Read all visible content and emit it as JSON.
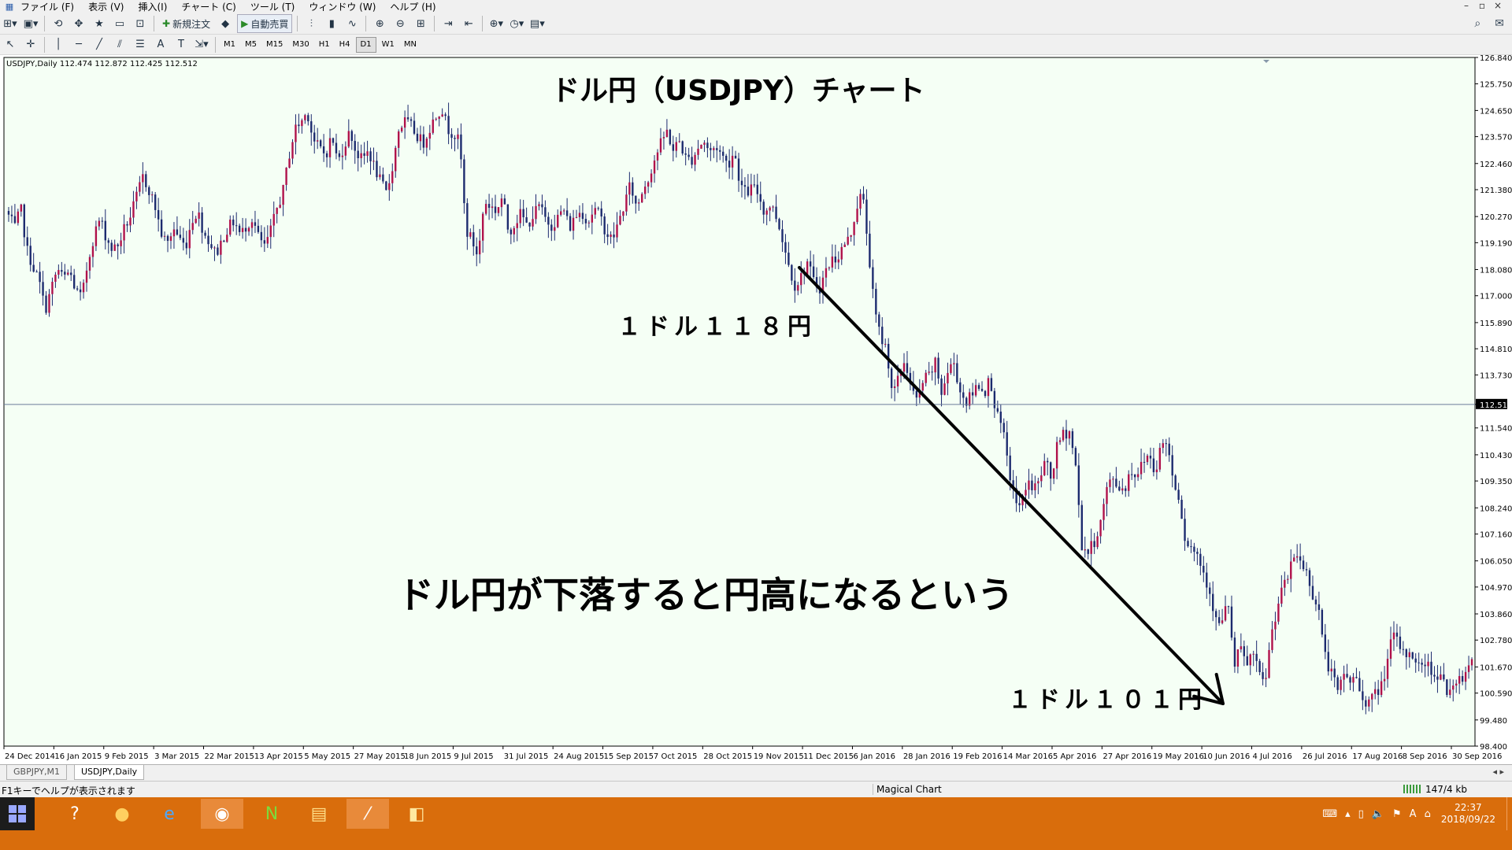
{
  "menu": {
    "items": [
      "ファイル (F)",
      "表示 (V)",
      "挿入(I)",
      "チャート (C)",
      "ツール (T)",
      "ウィンドウ (W)",
      "ヘルプ (H)"
    ],
    "window_controls": [
      "–",
      "▫",
      "×"
    ]
  },
  "toolbar": {
    "new_order": "新規注文",
    "auto_trading": "自動売買",
    "timeframes": [
      "M1",
      "M5",
      "M15",
      "M30",
      "H1",
      "H4",
      "D1",
      "W1",
      "MN"
    ],
    "active_timeframe": "D1"
  },
  "chart": {
    "symbol_info": "USDJPY,Daily  112.474 112.872 112.425 112.512",
    "title": "ドル円（USDJPY）チャート",
    "annotation_start": "１ドル１１８円",
    "annotation_main": "ドル円が下落すると円高になるという",
    "annotation_end": "１ドル１０１円",
    "current_price_label": "112.512",
    "colors": {
      "background": "#f5fff5",
      "bull": "#b0104a",
      "bear": "#1c2a6e",
      "price_line": "#6a7a9a",
      "arrow": "#000000"
    }
  },
  "chart_data": {
    "type": "candlestick",
    "symbol": "USDJPY",
    "timeframe": "Daily",
    "ylim": [
      98.4,
      126.84
    ],
    "yticks": [
      126.84,
      125.75,
      124.65,
      123.57,
      122.46,
      121.38,
      120.27,
      119.19,
      118.08,
      117.0,
      115.89,
      114.81,
      113.73,
      112.512,
      111.54,
      110.43,
      109.35,
      108.24,
      107.16,
      106.05,
      104.97,
      103.86,
      102.78,
      101.67,
      100.59,
      99.48,
      98.4
    ],
    "ytick_labels": [
      "126.840",
      "125.750",
      "124.650",
      "123.570",
      "122.460",
      "121.380",
      "120.270",
      "119.190",
      "118.080",
      "117.000",
      "115.890",
      "114.810",
      "113.730",
      "112.512",
      "111.540",
      "110.430",
      "109.350",
      "108.240",
      "107.160",
      "106.050",
      "104.970",
      "103.860",
      "102.780",
      "101.670",
      "100.590",
      "99.480",
      "98.400"
    ],
    "xtick_labels": [
      "24 Dec 2014",
      "16 Jan 2015",
      "9 Feb 2015",
      "3 Mar 2015",
      "22 Mar 2015",
      "13 Apr 2015",
      "5 May 2015",
      "27 May 2015",
      "18 Jun 2015",
      "9 Jul 2015",
      "31 Jul 2015",
      "24 Aug 2015",
      "15 Sep 2015",
      "7 Oct 2015",
      "28 Oct 2015",
      "19 Nov 2015",
      "11 Dec 2015",
      "6 Jan 2016",
      "28 Jan 2016",
      "19 Feb 2016",
      "14 Mar 2016",
      "5 Apr 2016",
      "27 Apr 2016",
      "19 May 2016",
      "10 Jun 2016",
      "4 Jul 2016",
      "26 Jul 2016",
      "17 Aug 2016",
      "8 Sep 2016",
      "30 Sep 2016"
    ],
    "current_price": 112.512,
    "trend_arrow": {
      "from_price": 118.0,
      "to_price": 101.0
    },
    "close_path": [
      120.3,
      119.8,
      120.6,
      118.9,
      118.2,
      117.6,
      116.4,
      117.3,
      118.1,
      117.7,
      118.0,
      117.2,
      116.9,
      118.4,
      119.5,
      120.2,
      119.4,
      118.9,
      119.1,
      119.8,
      120.3,
      121.1,
      121.9,
      121.4,
      120.7,
      119.6,
      119.1,
      119.8,
      119.4,
      119.0,
      120.1,
      120.5,
      119.6,
      119.2,
      118.7,
      119.3,
      119.8,
      120.1,
      119.5,
      119.9,
      120.2,
      119.4,
      119.0,
      119.7,
      120.6,
      121.3,
      122.8,
      123.9,
      124.2,
      124.6,
      123.4,
      123.1,
      122.8,
      123.6,
      122.5,
      123.2,
      123.8,
      122.9,
      122.6,
      123.0,
      122.3,
      121.7,
      121.2,
      122.4,
      123.9,
      124.2,
      124.0,
      123.6,
      123.3,
      123.9,
      124.4,
      124.8,
      123.9,
      123.7,
      123.3,
      119.7,
      119.3,
      118.6,
      120.9,
      120.7,
      120.5,
      121.1,
      119.6,
      120.0,
      120.4,
      119.9,
      120.3,
      120.7,
      120.2,
      119.9,
      120.2,
      120.6,
      119.8,
      120.3,
      120.5,
      120.0,
      120.6,
      120.3,
      119.6,
      119.3,
      120.0,
      120.8,
      121.6,
      120.6,
      121.4,
      121.9,
      122.7,
      123.3,
      123.8,
      123.0,
      123.4,
      122.7,
      122.6,
      123.1,
      123.4,
      122.9,
      123.2,
      122.8,
      122.4,
      123.0,
      121.6,
      121.2,
      121.5,
      121.2,
      120.4,
      120.8,
      120.2,
      119.3,
      118.2,
      117.4,
      117.8,
      118.4,
      117.6,
      117.3,
      118.0,
      118.5,
      118.6,
      119.1,
      119.4,
      120.6,
      121.3,
      119.0,
      116.4,
      115.3,
      114.8,
      112.9,
      113.6,
      114.4,
      113.2,
      112.6,
      113.5,
      113.7,
      114.2,
      113.0,
      113.8,
      114.3,
      113.1,
      112.6,
      112.9,
      113.4,
      113.0,
      113.6,
      112.1,
      111.5,
      109.9,
      108.6,
      108.2,
      109.4,
      109.0,
      109.3,
      110.2,
      109.4,
      110.8,
      111.3,
      111.4,
      110.0,
      106.7,
      106.4,
      106.8,
      107.5,
      108.9,
      109.5,
      109.1,
      109.0,
      109.8,
      109.6,
      110.1,
      110.5,
      109.7,
      110.8,
      111.0,
      109.4,
      108.7,
      106.9,
      106.6,
      106.3,
      105.6,
      104.8,
      103.6,
      103.4,
      104.5,
      101.6,
      102.5,
      101.7,
      102.3,
      101.4,
      100.9,
      102.8,
      104.1,
      104.9,
      105.5,
      106.4,
      106.0,
      105.5,
      104.6,
      103.9,
      102.0,
      101.4,
      100.6,
      101.4,
      101.1,
      101.2,
      100.4,
      100.2,
      100.5,
      100.8,
      101.7,
      103.0,
      102.6,
      102.1,
      102.4,
      101.6,
      101.9,
      101.7,
      101.2,
      101.6,
      100.5,
      100.7,
      101.2,
      101.4,
      102.2
    ]
  },
  "tabs": [
    "GBPJPY,M1",
    "USDJPY,Daily"
  ],
  "active_tab": "USDJPY,Daily",
  "status": {
    "help": "F1キーでヘルプが表示されます",
    "profile": "Magical Chart",
    "connection": "147/4 kb"
  },
  "taskbar": {
    "apps": [
      {
        "name": "help-app",
        "glyph": "?"
      },
      {
        "name": "browser-orb",
        "glyph": "●"
      },
      {
        "name": "internet-explorer",
        "glyph": "e"
      },
      {
        "name": "chrome",
        "glyph": "◉"
      },
      {
        "name": "nicovideo-app",
        "glyph": "N"
      },
      {
        "name": "file-explorer",
        "glyph": "▤"
      },
      {
        "name": "metatrader",
        "glyph": "⁄"
      },
      {
        "name": "notes-app",
        "glyph": "◧"
      }
    ],
    "time": "22:37",
    "date": "2018/09/22"
  }
}
